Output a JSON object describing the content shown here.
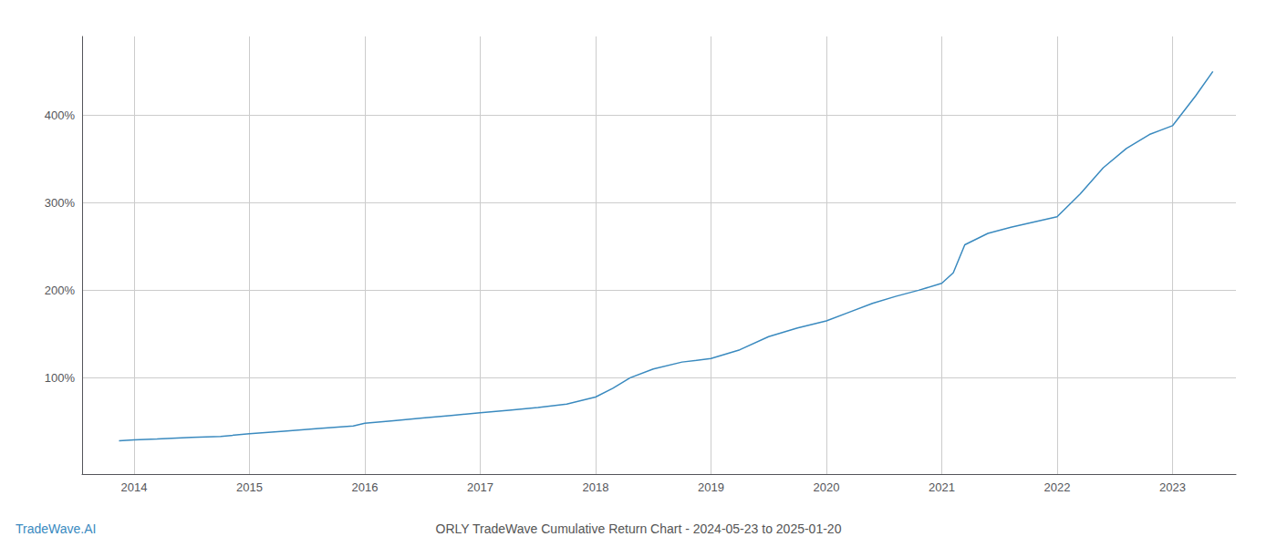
{
  "chart_data": {
    "type": "line",
    "title": "ORLY TradeWave Cumulative Return Chart - 2024-05-23 to 2025-01-20",
    "annotations": [
      "TradeWave.AI"
    ],
    "color": "#3a8abf",
    "grid": true,
    "x": [
      2013.87,
      2014.0,
      2014.2,
      2014.5,
      2014.75,
      2015.0,
      2015.3,
      2015.6,
      2015.9,
      2016.0,
      2016.25,
      2016.5,
      2016.75,
      2017.0,
      2017.25,
      2017.5,
      2017.75,
      2018.0,
      2018.15,
      2018.3,
      2018.5,
      2018.75,
      2019.0,
      2019.25,
      2019.5,
      2019.75,
      2020.0,
      2020.2,
      2020.4,
      2020.6,
      2020.8,
      2021.0,
      2021.1,
      2021.2,
      2021.4,
      2021.6,
      2021.8,
      2022.0,
      2022.2,
      2022.4,
      2022.6,
      2022.8,
      2023.0,
      2023.2,
      2023.35
    ],
    "values": [
      28,
      29,
      30,
      32,
      33,
      36,
      39,
      42,
      45,
      48,
      51,
      54,
      57,
      60,
      63,
      66,
      70,
      78,
      88,
      100,
      110,
      118,
      122,
      132,
      147,
      157,
      165,
      175,
      185,
      193,
      200,
      208,
      220,
      252,
      265,
      272,
      278,
      284,
      310,
      340,
      362,
      378,
      388,
      422,
      450
    ],
    "xlim": [
      2013.55,
      2023.55
    ],
    "xticks": [
      2014,
      2015,
      2016,
      2017,
      2018,
      2019,
      2020,
      2021,
      2022,
      2023
    ],
    "ylim": [
      -10,
      490
    ],
    "yticks": [
      {
        "value": 100,
        "label": "100%"
      },
      {
        "value": 200,
        "label": "200%"
      },
      {
        "value": 300,
        "label": "300%"
      },
      {
        "value": 400,
        "label": "400%"
      }
    ]
  }
}
